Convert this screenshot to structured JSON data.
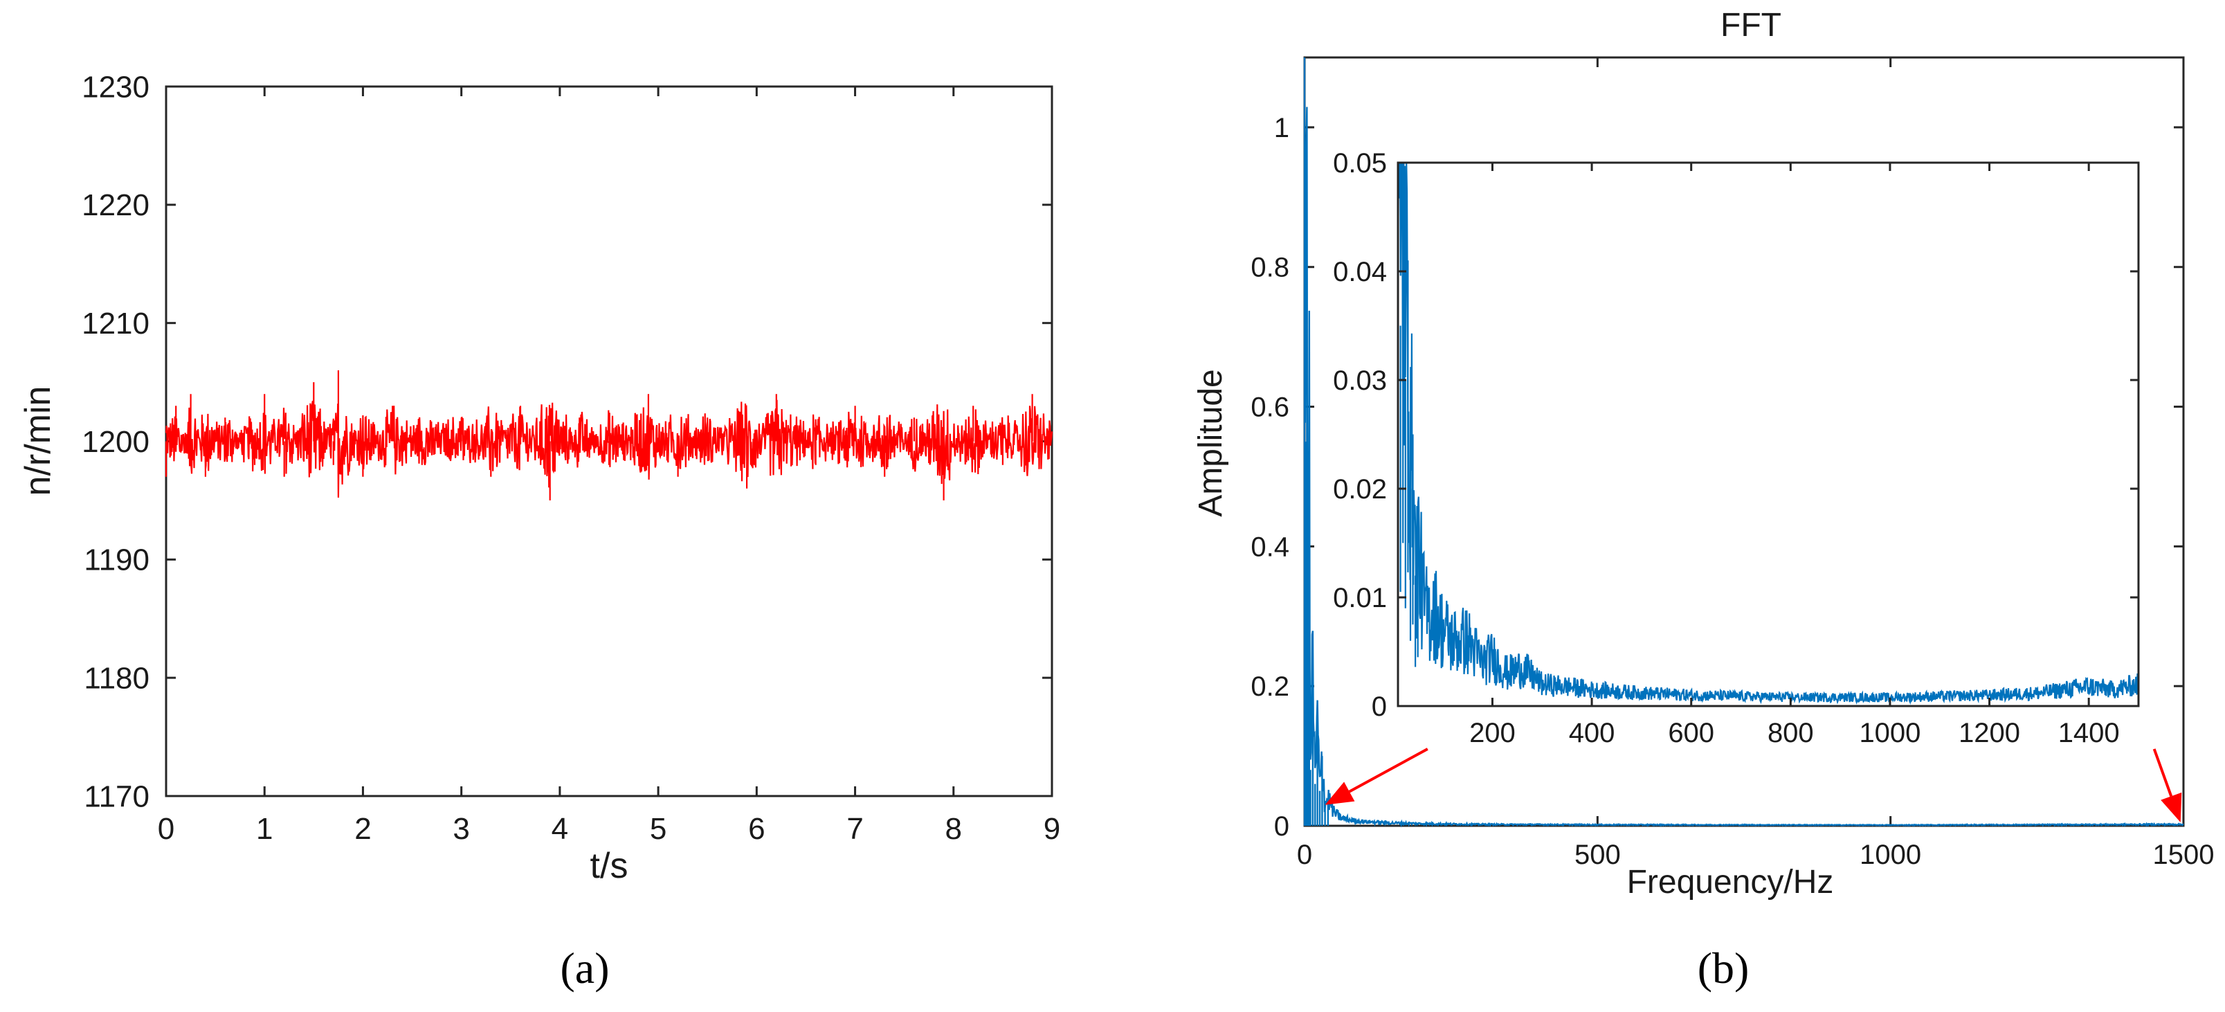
{
  "chart_data": [
    {
      "type": "line",
      "panel_label": "(a)",
      "title": "",
      "xlabel": "t/s",
      "ylabel": "n/r/min",
      "xlim": [
        0,
        9
      ],
      "ylim": [
        1170,
        1230
      ],
      "xticks": [
        0,
        1,
        2,
        3,
        4,
        5,
        6,
        7,
        8,
        9
      ],
      "yticks": [
        1170,
        1180,
        1190,
        1200,
        1210,
        1220,
        1230
      ],
      "grid": false,
      "series": [
        {
          "color": "#ff0000",
          "description": "speed signal fluctuating around 1200 r/min",
          "mean": 1200,
          "x": [
            0,
            0.1,
            0.2,
            0.25,
            0.4,
            0.6,
            0.9,
            1.0,
            1.2,
            1.5,
            1.7,
            1.75,
            2.0,
            2.3,
            2.6,
            3.0,
            3.3,
            3.6,
            3.9,
            4.2,
            4.5,
            4.9,
            5.2,
            5.5,
            5.9,
            6.2,
            6.6,
            7.0,
            7.3,
            7.6,
            7.9,
            8.2,
            8.5,
            8.8,
            9.0
          ],
          "y": [
            1197,
            1203,
            1199,
            1204,
            1197,
            1202,
            1198,
            1204,
            1197,
            1205,
            1198,
            1206,
            1197,
            1203,
            1198,
            1202,
            1197,
            1203,
            1195,
            1202,
            1198,
            1204,
            1197,
            1202,
            1196,
            1204,
            1198,
            1203,
            1197,
            1202,
            1195,
            1203,
            1198,
            1204,
            1200
          ]
        }
      ]
    },
    {
      "type": "line",
      "panel_label": "(b)",
      "title": "FFT",
      "xlabel": "Frequency/Hz",
      "ylabel": "Amplitude",
      "xlim": [
        0,
        1500
      ],
      "ylim": [
        0,
        1.1
      ],
      "xticks": [
        0,
        500,
        1000,
        1500
      ],
      "yticks": [
        0,
        0.2,
        0.4,
        0.6,
        0.8,
        1
      ],
      "grid": false,
      "series": [
        {
          "color": "#0072bd",
          "description": "FFT amplitude spectrum",
          "x": [
            0,
            2,
            4,
            6,
            8,
            10,
            14,
            18,
            22,
            26,
            30,
            35,
            40,
            50,
            60,
            80,
            100,
            150,
            200,
            300,
            500,
            1000,
            1500
          ],
          "y": [
            1.1,
            0.55,
            0.97,
            0.3,
            0.5,
            0.08,
            0.24,
            0.06,
            0.15,
            0.05,
            0.1,
            0.03,
            0.04,
            0.02,
            0.012,
            0.008,
            0.006,
            0.004,
            0.003,
            0.002,
            0.0015,
            0.001,
            0.002
          ]
        }
      ],
      "inset": {
        "xlim": [
          10,
          1500
        ],
        "ylim": [
          0,
          0.05
        ],
        "xticks": [
          200,
          400,
          600,
          800,
          1000,
          1200,
          1400
        ],
        "yticks": [
          0,
          0.01,
          0.02,
          0.03,
          0.04,
          0.05
        ],
        "series": [
          {
            "color": "#0072bd",
            "x": [
              10,
              15,
              20,
              25,
              30,
              35,
              40,
              45,
              50,
              60,
              70,
              80,
              100,
              120,
              150,
              180,
              200,
              230,
              260,
              300,
              350,
              400,
              500,
              600,
              700,
              800,
              900,
              1000,
              1100,
              1200,
              1300,
              1400,
              1450,
              1500
            ],
            "y": [
              0.05,
              0.035,
              0.05,
              0.03,
              0.041,
              0.02,
              0.025,
              0.012,
              0.015,
              0.01,
              0.008,
              0.009,
              0.007,
              0.006,
              0.006,
              0.004,
              0.0045,
              0.003,
              0.0035,
              0.002,
              0.0018,
              0.0015,
              0.0012,
              0.001,
              0.0009,
              0.0008,
              0.0008,
              0.0008,
              0.0009,
              0.001,
              0.0012,
              0.0018,
              0.0015,
              0.002
            ]
          }
        ]
      },
      "annotations": [
        {
          "type": "arrow",
          "color": "#ff0000",
          "from": [
            210,
            0.11
          ],
          "to": [
            35,
            0.03
          ]
        },
        {
          "type": "arrow",
          "color": "#ff0000",
          "from": [
            1450,
            0.11
          ],
          "to": [
            1495,
            0.005
          ]
        }
      ]
    }
  ]
}
